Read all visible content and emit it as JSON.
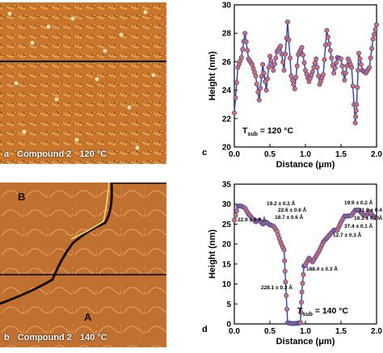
{
  "panels": {
    "a": {
      "letter": "a",
      "caption": "Compound 2",
      "temp": "120 °C"
    },
    "b": {
      "letter": "b",
      "caption": "Compound 2",
      "temp": "140 °C",
      "region_labels": [
        "B",
        "A"
      ]
    }
  },
  "chart_data": [
    {
      "panel": "c",
      "type": "line",
      "xlabel": "Distance (μm)",
      "ylabel": "Height (nm)",
      "xlim": [
        0.0,
        2.0
      ],
      "ylim": [
        20,
        30
      ],
      "xticks": [
        "0.0",
        "0.5",
        "1.0",
        "1.5",
        "2.0"
      ],
      "yticks": [
        "20",
        "22",
        "24",
        "26",
        "28",
        "30"
      ],
      "annotation": "T_sub = 120 °C",
      "annotation_main": "T",
      "annotation_sub": "sub",
      "annotation_rest": " = 120 °C",
      "x": [
        0.0,
        0.05,
        0.1,
        0.15,
        0.2,
        0.25,
        0.3,
        0.35,
        0.4,
        0.45,
        0.5,
        0.55,
        0.6,
        0.65,
        0.7,
        0.75,
        0.8,
        0.85,
        0.9,
        0.95,
        1.0,
        1.05,
        1.1,
        1.15,
        1.2,
        1.25,
        1.3,
        1.35,
        1.4,
        1.45,
        1.5,
        1.55,
        1.6,
        1.65,
        1.7,
        1.72,
        1.75,
        1.8,
        1.85,
        1.9,
        1.95,
        2.0
      ],
      "y": [
        22.4,
        25.6,
        26.3,
        28.0,
        26.2,
        25.8,
        25.0,
        23.3,
        25.8,
        24.0,
        26.4,
        25.4,
        26.7,
        27.1,
        25.4,
        28.8,
        25.0,
        24.1,
        26.5,
        27.0,
        25.4,
        24.6,
        25.3,
        26.2,
        24.4,
        25.1,
        28.2,
        26.8,
        25.2,
        26.3,
        26.2,
        24.7,
        26.2,
        25.6,
        21.7,
        23.0,
        26.6,
        25.4,
        25.2,
        25.6,
        27.6,
        28.6
      ]
    },
    {
      "panel": "d",
      "type": "line",
      "xlabel": "Distance (μm)",
      "ylabel": "Height (nm)",
      "xlim": [
        0.0,
        2.0
      ],
      "ylim": [
        0,
        35
      ],
      "xticks": [
        "0.0",
        "0.5",
        "1.0",
        "1.5",
        "2.0"
      ],
      "yticks": [
        "0",
        "5",
        "10",
        "15",
        "20",
        "25",
        "30",
        "35"
      ],
      "annotation": "T_sub = 140 °C",
      "annotation_main": "T",
      "annotation_sub": "sub",
      "annotation_rest": " = 140 °C",
      "x": [
        0.0,
        0.05,
        0.1,
        0.15,
        0.2,
        0.25,
        0.3,
        0.35,
        0.4,
        0.45,
        0.5,
        0.55,
        0.6,
        0.65,
        0.7,
        0.72,
        0.75,
        0.8,
        0.85,
        0.9,
        0.93,
        0.95,
        0.98,
        1.0,
        1.05,
        1.1,
        1.15,
        1.2,
        1.25,
        1.3,
        1.35,
        1.4,
        1.45,
        1.5,
        1.55,
        1.6,
        1.65,
        1.7,
        1.75,
        1.8,
        1.85,
        1.9,
        1.95,
        2.0
      ],
      "y": [
        26.0,
        29.5,
        29.5,
        29.0,
        27.5,
        26.5,
        25.6,
        26.0,
        25.0,
        25.5,
        24.8,
        24.5,
        23.2,
        20.5,
        18.5,
        10.5,
        0.3,
        0.1,
        0.1,
        0.2,
        0.3,
        8.0,
        14.5,
        14.8,
        16.5,
        15.5,
        17.0,
        18.5,
        20.5,
        21.5,
        22.5,
        23.5,
        23.5,
        25.5,
        27.0,
        27.0,
        27.2,
        28.5,
        28.5,
        27.6,
        27.0,
        28.2,
        27.0,
        26.6
      ],
      "step_labels": [
        "19.2 ± 0.2 Å",
        "22.6 ± 0.6 Å",
        "18.7 ± 0.6 Å",
        "22.9 ± 0.4 Å",
        "19.9 ± 0.2 Å",
        "21.8 ± 0.4 Å",
        "18.3 ± 0.2 Å",
        "37.4 ± 0.1 Å",
        "12.7 ± 0.3 Å",
        "188.4 ± 0.3 Å",
        "228.1 ± 0.3 Å"
      ]
    }
  ]
}
